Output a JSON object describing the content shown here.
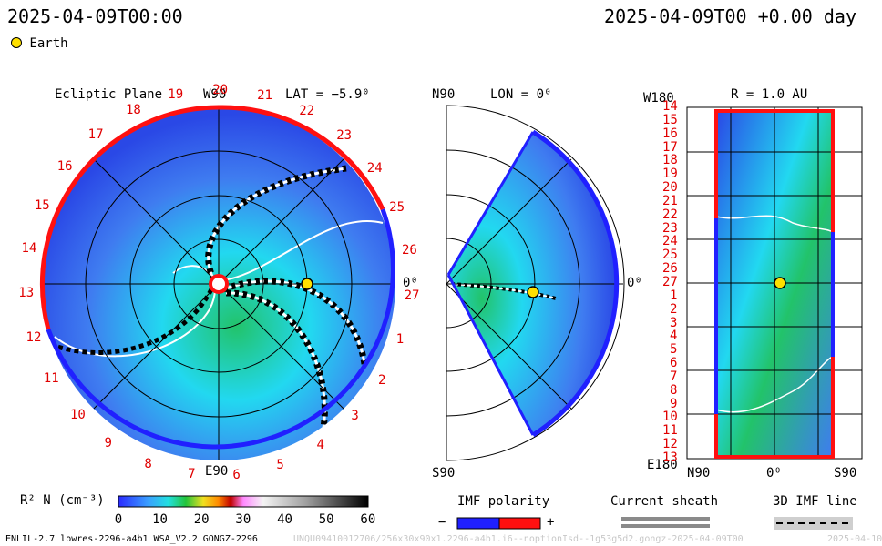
{
  "header": {
    "left_time": "2025-04-09T00:00",
    "right_time": "2025-04-09T00 +0.00 day"
  },
  "legend": {
    "earth_label": "Earth"
  },
  "colors": {
    "field_dark": "#2a48e6",
    "field_mid": "#3f7cf0",
    "field_cyan": "#22d8f0",
    "field_green": "#22c36a",
    "border_negative": "#2020ff",
    "border_positive": "#ff1010",
    "earth": "#ffe000"
  },
  "panels": {
    "ecliptic": {
      "title": "Ecliptic Plane",
      "top_axis": "W90",
      "lat": "LAT = −5.9⁰",
      "bottom_axis": "E90",
      "right_axis": "0⁰",
      "rotation_labels": [
        "19",
        "20",
        "21",
        "22",
        "23",
        "24",
        "25",
        "26",
        "27",
        "1",
        "2",
        "3",
        "4",
        "5",
        "6",
        "7",
        "8",
        "9",
        "10",
        "11",
        "12",
        "13",
        "14",
        "15",
        "16",
        "17",
        "18"
      ]
    },
    "meridional": {
      "top_axis": "N90",
      "lon": "LON = 0⁰",
      "bottom_axis": "S90",
      "right_axis": "0⁰"
    },
    "radial": {
      "top_left_axis": "W180",
      "title": "R = 1.0 AU",
      "bottom_left_axis": "E180",
      "bottom_axes": [
        "N90",
        "0⁰",
        "S90"
      ],
      "rotation_labels": [
        "14",
        "15",
        "16",
        "17",
        "18",
        "19",
        "20",
        "21",
        "22",
        "23",
        "24",
        "25",
        "26",
        "27",
        "1",
        "2",
        "3",
        "4",
        "5",
        "6",
        "7",
        "8",
        "9",
        "10",
        "11",
        "12",
        "13"
      ]
    }
  },
  "colorbar": {
    "label_main": "R² N (cm⁻³)",
    "ticks": [
      "0",
      "10",
      "20",
      "30",
      "40",
      "50",
      "60"
    ],
    "range": [
      0,
      60
    ]
  },
  "legends": {
    "imf_polarity": {
      "title": "IMF polarity",
      "minus": "−",
      "plus": "+"
    },
    "current_sheath": {
      "title": "Current sheath"
    },
    "imf_line": {
      "title": "3D IMF line"
    }
  },
  "footer": {
    "model": "ENLIL-2.7 lowres-2296-a4b1 WSA_V2.2 GONGZ-2296",
    "run_id": "UNQU09410012706/256x30x90x1.2296-a4b1.i6--noptionIsd--1g53g5d2.gongz-2025-04-09T00",
    "date_stub": "2025-04-10"
  },
  "chart_data": {
    "type": "heatmap",
    "title": "",
    "quantity": "R² N (cm⁻³)",
    "color_range": [
      0,
      60
    ],
    "earth": {
      "lon_deg": 0,
      "lat_deg": -5.9,
      "r_au": 1.0
    },
    "views": [
      "Ecliptic Plane",
      "LON = 0⁰",
      "R = 1.0 AU"
    ]
  }
}
